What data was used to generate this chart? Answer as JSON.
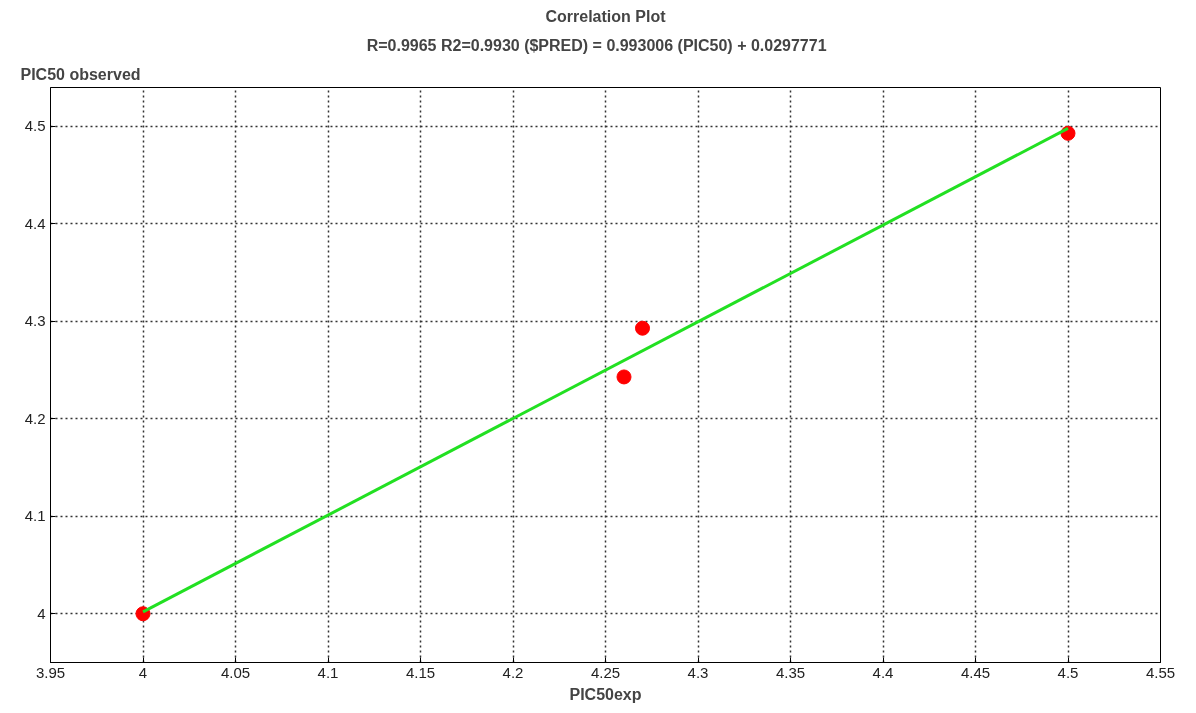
{
  "chart_data": {
    "type": "scatter",
    "title": "Correlation Plot",
    "subtitle": "R=0.9965 R2=0.9930     ($PRED) = 0.993006 (PIC50) + 0.0297771",
    "xlabel": "PIC50exp",
    "ylabel": "PIC50 observed",
    "series": [
      {
        "color": "#ff0000",
        "marker": "circle",
        "x": [
          4.0,
          4.26,
          4.27,
          4.5
        ],
        "values": [
          4.0,
          4.243,
          4.293,
          4.493
        ]
      },
      {
        "type": "line",
        "color": "#22e022",
        "line_style": "solid",
        "x": [
          4.0,
          4.5
        ],
        "values": [
          4.002,
          4.498
        ]
      }
    ],
    "xlim": [
      3.95,
      4.55
    ],
    "ylim": [
      3.95,
      4.54
    ],
    "xticks": [
      3.95,
      4,
      4.05,
      4.1,
      4.15,
      4.2,
      4.25,
      4.3,
      4.35,
      4.4,
      4.45,
      4.5,
      4.55
    ],
    "yticks": [
      4,
      4.1,
      4.2,
      4.3,
      4.4,
      4.5
    ],
    "grid": true
  }
}
